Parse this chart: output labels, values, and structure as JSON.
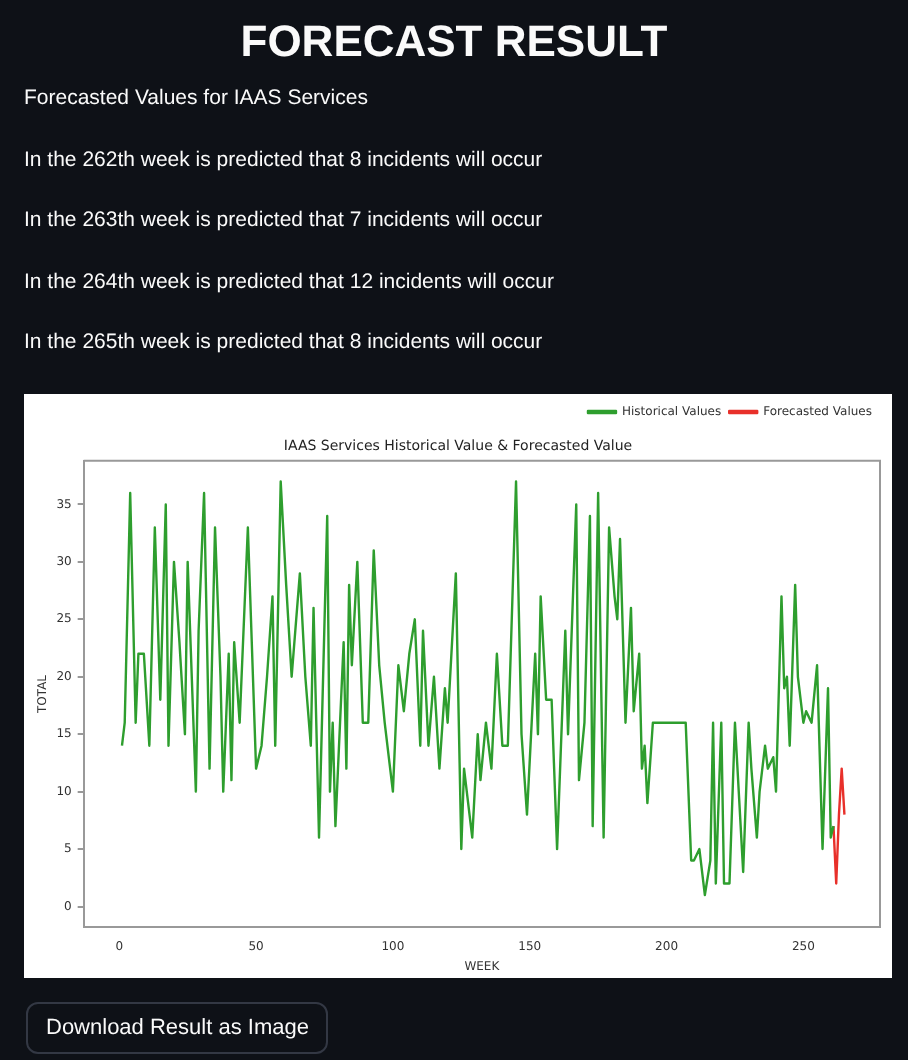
{
  "chart_data": {
    "type": "line",
    "title": "FORECAST RESULT",
    "subtitle": "Forecasted Values for IAAS Services",
    "annotations": [
      "In the 262th week is predicted that 8 incidents will occur",
      "In the 263th week is predicted that 7 incidents will occur",
      "In the 264th week is predicted that 12 incidents will occur",
      "In the 265th week is predicted that 8 incidents will occur",
      "IAAS Services Historical Value & Forecasted Value",
      "Download Result as Image"
    ],
    "xlabel": "WEEK",
    "ylabel": "TOTAL",
    "series": [
      {
        "name": "Historical Values",
        "color": "#2e9e2e",
        "x": [
          1,
          2,
          4,
          6,
          7,
          9,
          11,
          13,
          15,
          17,
          18,
          20,
          22,
          24,
          25,
          28,
          29,
          31,
          33,
          35,
          37,
          38,
          40,
          41,
          42,
          44,
          47,
          50,
          52,
          54,
          56,
          57,
          59,
          61,
          63,
          66,
          68,
          70,
          71,
          73,
          76,
          77,
          78,
          79,
          82,
          83,
          84,
          85,
          87,
          89,
          91,
          93,
          95,
          97,
          100,
          102,
          104,
          106,
          108,
          110,
          111,
          113,
          115,
          117,
          119,
          120,
          123,
          125,
          126,
          129,
          131,
          132,
          134,
          136,
          138,
          140,
          142,
          145,
          147,
          149,
          152,
          153,
          154,
          156,
          158,
          160,
          163,
          164,
          167,
          168,
          170,
          172,
          173,
          175,
          177,
          179,
          181,
          182,
          183,
          185,
          187,
          188,
          190,
          191,
          192,
          193,
          195,
          207,
          209,
          210,
          212,
          214,
          216,
          217,
          218,
          220,
          221,
          223,
          224,
          225,
          228,
          230,
          231,
          233,
          234,
          236,
          237,
          239,
          240,
          242,
          243,
          244,
          245,
          247,
          248,
          250,
          251,
          253,
          255,
          257,
          259,
          260,
          261
        ],
        "values": [
          14,
          16,
          36,
          16,
          22,
          22,
          14,
          33,
          18,
          35,
          14,
          30,
          23,
          15,
          30,
          10,
          24,
          36,
          12,
          33,
          20,
          10,
          22,
          11,
          23,
          16,
          33,
          12,
          14,
          20,
          27,
          14,
          37,
          28,
          20,
          29,
          20,
          14,
          26,
          6,
          34,
          10,
          16,
          7,
          23,
          12,
          28,
          21,
          30,
          16,
          16,
          31,
          21,
          16,
          10,
          21,
          17,
          22,
          25,
          14,
          24,
          14,
          20,
          12,
          19,
          16,
          29,
          5,
          12,
          6,
          15,
          11,
          16,
          12,
          22,
          14,
          14,
          37,
          15,
          8,
          22,
          15,
          27,
          18,
          18,
          5,
          24,
          15,
          35,
          11,
          16,
          34,
          7,
          36,
          6,
          33,
          27,
          25,
          32,
          16,
          26,
          17,
          22,
          12,
          14,
          9,
          16,
          16,
          4,
          4,
          5,
          1,
          4,
          16,
          2,
          16,
          2,
          2,
          9,
          16,
          3,
          16,
          12,
          6,
          10,
          14,
          12,
          13,
          10,
          27,
          19,
          20,
          14,
          28,
          20,
          16,
          17,
          16,
          21,
          5,
          19,
          6,
          7
        ]
      },
      {
        "name": "Forecasted Values",
        "color": "#e8302a",
        "x": [
          261,
          262,
          263,
          264,
          265
        ],
        "values": [
          7,
          2,
          8,
          12,
          8
        ]
      }
    ],
    "xlim": [
      -13,
      278
    ],
    "ylim": [
      -1.8,
      38.8
    ],
    "xticks": [
      0,
      50,
      100,
      150,
      200,
      250
    ],
    "yticks": [
      0,
      5,
      10,
      15,
      20,
      25,
      30,
      35
    ],
    "legend": "top right",
    "grid": false
  }
}
